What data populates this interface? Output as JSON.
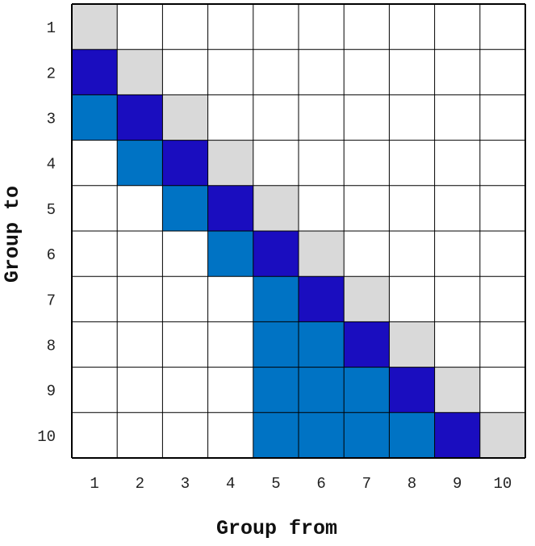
{
  "chart_data": {
    "type": "heatmap",
    "title": "",
    "xlabel": "Group from",
    "ylabel": "Group to",
    "x_categories": [
      "1",
      "2",
      "3",
      "4",
      "5",
      "6",
      "7",
      "8",
      "9",
      "10"
    ],
    "y_categories": [
      "1",
      "2",
      "3",
      "4",
      "5",
      "6",
      "7",
      "8",
      "9",
      "10"
    ],
    "legend": "none",
    "grid": true,
    "colors": {
      "empty": "#ffffff",
      "diagonal": "#d9d9d9",
      "dark": "#1a0dbf",
      "medium": "#0073c4",
      "gridline": "#000000"
    },
    "cell_levels": [
      "empty",
      "diagonal",
      "dark",
      "medium"
    ],
    "matrix": [
      [
        1,
        0,
        0,
        0,
        0,
        0,
        0,
        0,
        0,
        0
      ],
      [
        2,
        1,
        0,
        0,
        0,
        0,
        0,
        0,
        0,
        0
      ],
      [
        3,
        2,
        1,
        0,
        0,
        0,
        0,
        0,
        0,
        0
      ],
      [
        0,
        3,
        2,
        1,
        0,
        0,
        0,
        0,
        0,
        0
      ],
      [
        0,
        0,
        3,
        2,
        1,
        0,
        0,
        0,
        0,
        0
      ],
      [
        0,
        0,
        0,
        3,
        2,
        1,
        0,
        0,
        0,
        0
      ],
      [
        0,
        0,
        0,
        0,
        3,
        2,
        1,
        0,
        0,
        0
      ],
      [
        0,
        0,
        0,
        0,
        3,
        3,
        2,
        1,
        0,
        0
      ],
      [
        0,
        0,
        0,
        0,
        3,
        3,
        3,
        2,
        1,
        0
      ],
      [
        0,
        0,
        0,
        0,
        3,
        3,
        3,
        3,
        2,
        1
      ]
    ]
  }
}
